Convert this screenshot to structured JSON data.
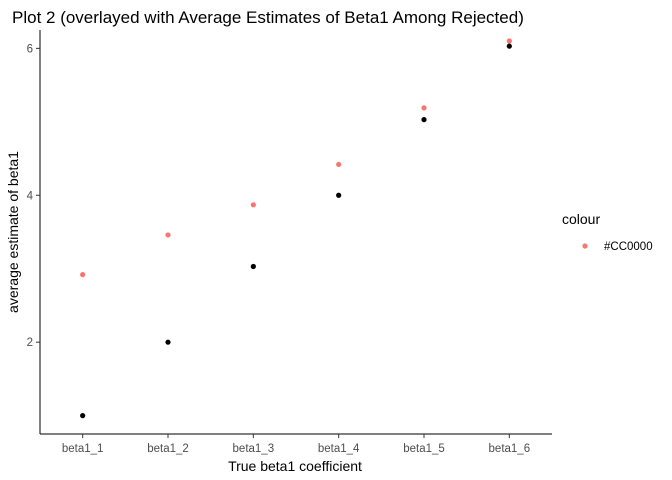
{
  "chart_data": {
    "type": "scatter",
    "title": "Plot 2 (overlayed with Average Estimates of Beta1 Among Rejected)",
    "xlabel": "True beta1 coefficient",
    "ylabel": "average estimate of beta1",
    "categories": [
      "beta1_1",
      "beta1_2",
      "beta1_3",
      "beta1_4",
      "beta1_5",
      "beta1_6"
    ],
    "ylim": [
      0.75,
      6.25
    ],
    "yticks": [
      2,
      4,
      6
    ],
    "grid": false,
    "series": [
      {
        "values": [
          1.0,
          2.0,
          3.03,
          4.0,
          5.03,
          6.03
        ],
        "color": "#000000"
      },
      {
        "name": "#CC0000",
        "values": [
          2.92,
          3.46,
          3.87,
          4.42,
          5.19,
          6.1
        ],
        "color": "#F8766D"
      }
    ],
    "legend": {
      "title": "colour",
      "position": "right"
    }
  }
}
